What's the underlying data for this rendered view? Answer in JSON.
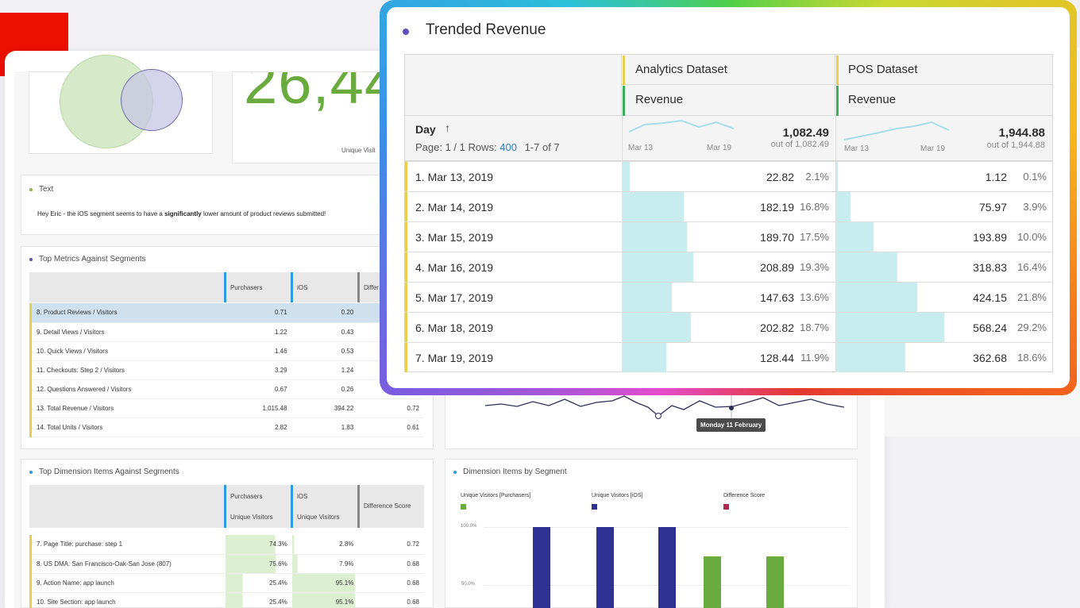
{
  "background": {
    "big_number": "26,44",
    "big_number_sublabel": "Unique Visit",
    "text_panel": {
      "title": "Text",
      "message_prefix": "Hey Eric - the iOS segment seems to have a ",
      "message_bold": "significantly",
      "message_suffix": " lower amount of product reviews submitted!"
    },
    "metrics_panel": {
      "title": "Top Metrics Against Segments",
      "headers": [
        "Purchasers",
        "iOS",
        "Differ"
      ],
      "rows": [
        {
          "label": "8. Product Reviews / Visitors",
          "a": "0.71",
          "b": "0.20",
          "c": ""
        },
        {
          "label": "9. Detail Views / Visitors",
          "a": "1.22",
          "b": "0.43",
          "c": ""
        },
        {
          "label": "10. Quick Views / Visitors",
          "a": "1.46",
          "b": "0.53",
          "c": ""
        },
        {
          "label": "11. Checkouts: Step 2 / Visitors",
          "a": "3.29",
          "b": "1.24",
          "c": ""
        },
        {
          "label": "12. Questions Answered / Visitors",
          "a": "0.67",
          "b": "0.26",
          "c": ""
        },
        {
          "label": "13. Total Revenue / Visitors",
          "a": "1,015.48",
          "b": "394.22",
          "c": "0.72"
        },
        {
          "label": "14. Total Units / Visitors",
          "a": "2.82",
          "b": "1.83",
          "c": "0.61"
        }
      ]
    },
    "dimension_panel": {
      "title": "Top Dimension Items Against Segments",
      "headers": [
        "Purchasers",
        "iOS",
        "Difference Score"
      ],
      "subheaders": [
        "Unique Visitors",
        "Unique Visitors"
      ],
      "rows": [
        {
          "label": "7. Page Title: purchase: step 1",
          "a": "74.3%",
          "b": "2.8%",
          "c": "0.72"
        },
        {
          "label": "8. US DMA: San Francisco-Oak-San Jose (807)",
          "a": "75.6%",
          "b": "7.9%",
          "c": "0.68"
        },
        {
          "label": "9. Action Name: app launch",
          "a": "25.4%",
          "b": "95.1%",
          "c": "0.68"
        },
        {
          "label": "10. Site Section: app launch",
          "a": "25.4%",
          "b": "95.1%",
          "c": "0.68"
        }
      ]
    },
    "line_panel": {
      "tooltip": "Monday 11 February"
    },
    "segment_chart": {
      "title": "Dimension Items by Segment",
      "legend": [
        "Unique Visitors [Purchasers]",
        "Unique Visitors [iOS]",
        "Difference Score"
      ],
      "y_ticks": [
        "100.0%",
        "50.0%"
      ],
      "colors": {
        "purchasers": "#6aab3d",
        "ios": "#2e3192",
        "difference": "#b0264d"
      }
    }
  },
  "trended_revenue": {
    "title": "Trended Revenue",
    "columns": [
      {
        "dataset": "Analytics Dataset",
        "metric": "Revenue",
        "total": "1,082.49",
        "total_sub": "out of 1,082.49",
        "spark_start": "Mar 13",
        "spark_end": "Mar 19"
      },
      {
        "dataset": "POS Dataset",
        "metric": "Revenue",
        "total": "1,944.88",
        "total_sub": "out of 1,944.88",
        "spark_start": "Mar 13",
        "spark_end": "Mar 19"
      }
    ],
    "dimension": "Day",
    "page_label": "Page: 1 / 1  Rows:",
    "rows_count": "400",
    "range_label": "1-7 of 7",
    "rows": [
      {
        "label": "1. Mar 13, 2019",
        "a_val": "22.82",
        "a_pct": "2.1%",
        "a_share": 0.021,
        "b_val": "1.12",
        "b_pct": "0.1%",
        "b_share": 0.001
      },
      {
        "label": "2. Mar 14, 2019",
        "a_val": "182.19",
        "a_pct": "16.8%",
        "a_share": 0.168,
        "b_val": "75.97",
        "b_pct": "3.9%",
        "b_share": 0.039
      },
      {
        "label": "3. Mar 15, 2019",
        "a_val": "189.70",
        "a_pct": "17.5%",
        "a_share": 0.175,
        "b_val": "193.89",
        "b_pct": "10.0%",
        "b_share": 0.1
      },
      {
        "label": "4. Mar 16, 2019",
        "a_val": "208.89",
        "a_pct": "19.3%",
        "a_share": 0.193,
        "b_val": "318.83",
        "b_pct": "16.4%",
        "b_share": 0.164
      },
      {
        "label": "5. Mar 17, 2019",
        "a_val": "147.63",
        "a_pct": "13.6%",
        "a_share": 0.136,
        "b_val": "424.15",
        "b_pct": "21.8%",
        "b_share": 0.218
      },
      {
        "label": "6. Mar 18, 2019",
        "a_val": "202.82",
        "a_pct": "18.7%",
        "a_share": 0.187,
        "b_val": "568.24",
        "b_pct": "29.2%",
        "b_share": 0.292
      },
      {
        "label": "7. Mar 19, 2019",
        "a_val": "128.44",
        "a_pct": "11.9%",
        "a_share": 0.119,
        "b_val": "362.68",
        "b_pct": "18.6%",
        "b_share": 0.186
      }
    ]
  }
}
